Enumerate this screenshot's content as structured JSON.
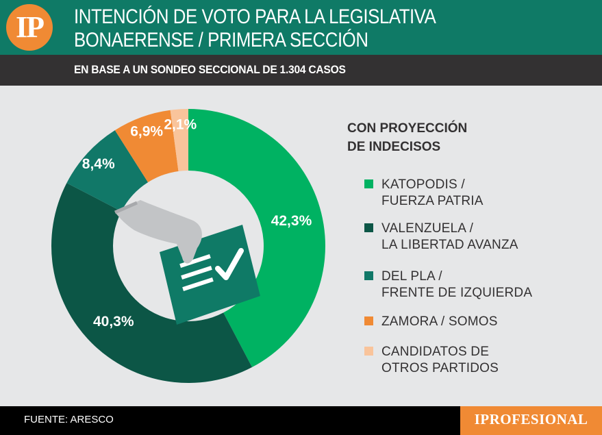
{
  "header": {
    "logo": "IP",
    "title_line1": "INTENCIÓN DE VOTO PARA LA LEGISLATIVA",
    "title_line2": "BONAERENSE / PRIMERA SECCIÓN",
    "subtitle": "EN BASE A UN SONDEO SECCIONAL DE 1.304 CASOS"
  },
  "legend": {
    "title": "CON PROYECCIÓN\nDE INDECISOS"
  },
  "chart_data": {
    "type": "pie",
    "style": "donut",
    "center_icon": "ballot-box-hand-icon",
    "series": [
      {
        "name": "KATOPODIS /\nFUERZA PATRIA",
        "value": 42.3,
        "label": "42,3%",
        "color": "#00b262"
      },
      {
        "name": "VALENZUELA /\nLA LIBERTAD AVANZA",
        "value": 40.3,
        "label": "40,3%",
        "color": "#0c5646"
      },
      {
        "name": "DEL PLA /\nFRENTE DE IZQUIERDA",
        "value": 8.4,
        "label": "8,4%",
        "color": "#117868"
      },
      {
        "name": "ZAMORA / SOMOS",
        "value": 6.9,
        "label": "6,9%",
        "color": "#f08a34"
      },
      {
        "name": "CANDIDATOS DE\nOTROS PARTIDOS",
        "value": 2.1,
        "label": "2,1%",
        "color": "#f9c49b"
      }
    ]
  },
  "footer": {
    "source": "FUENTE: ARESCO",
    "brand": "IPROFESIONAL"
  }
}
